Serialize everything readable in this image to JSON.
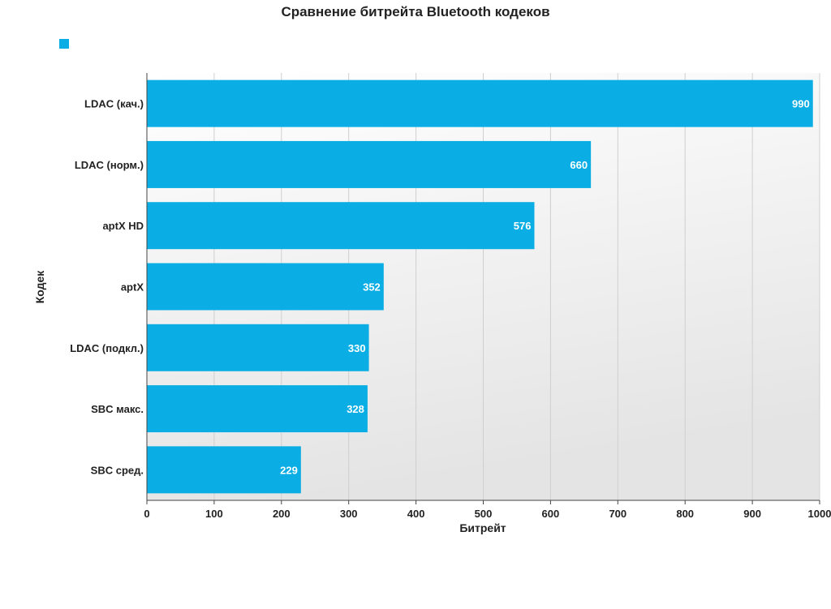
{
  "chart_data": {
    "type": "bar",
    "orientation": "horizontal",
    "title": "Сравнение битрейта Bluetooth кодеков",
    "xlabel": "Битрейт",
    "ylabel": "Кодек",
    "categories": [
      "LDAC (кач.)",
      "LDAC (норм.)",
      "aptX HD",
      "aptX",
      "LDAC (подкл.)",
      "SBC макс.",
      "SBC сред."
    ],
    "values": [
      990,
      660,
      576,
      352,
      330,
      328,
      229
    ],
    "xlim": [
      0,
      1000
    ],
    "xticks": [
      0,
      100,
      200,
      300,
      400,
      500,
      600,
      700,
      800,
      900,
      1000
    ],
    "grid": true,
    "legend": {
      "placement": "top-left",
      "entries": [
        {
          "name": "",
          "color": "#0aaee4"
        }
      ]
    },
    "colors": {
      "bar": "#0aaee4",
      "value_label": "#ffffff",
      "plot_bg_top": "#ffffff",
      "plot_bg_bottom": "#e4e4e4"
    }
  }
}
